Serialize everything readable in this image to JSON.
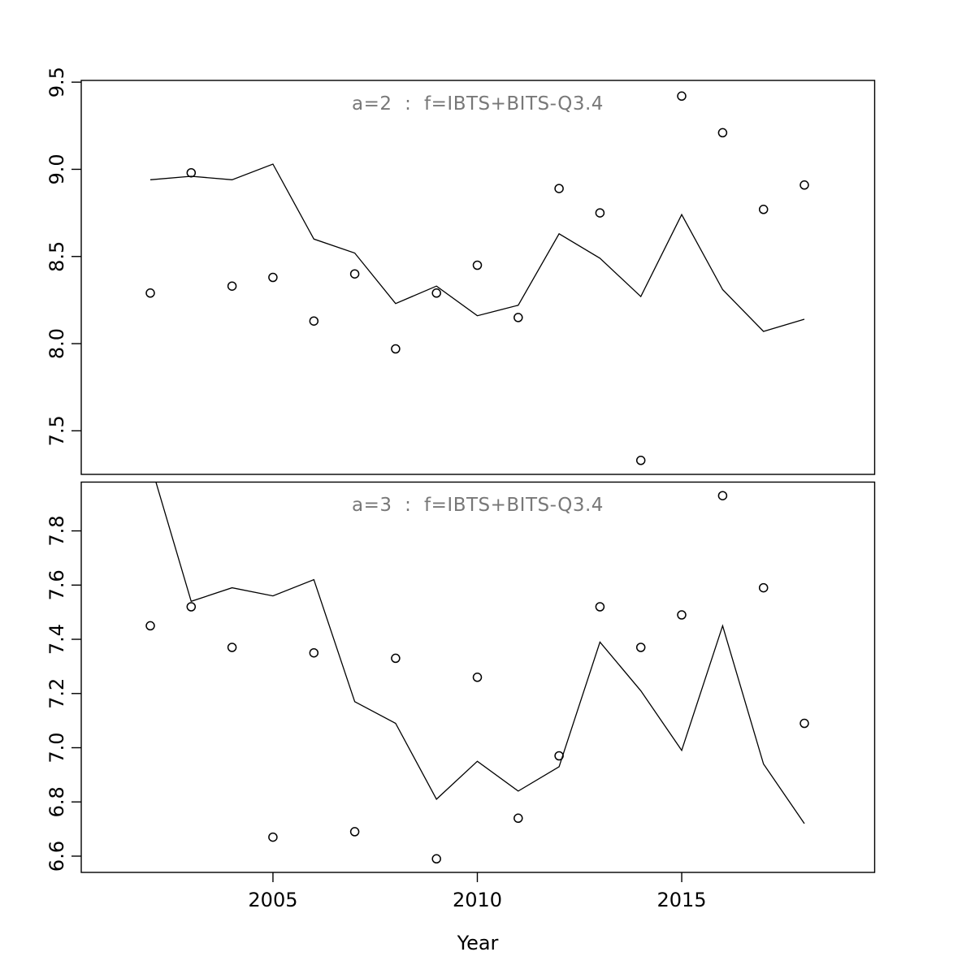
{
  "figure": {
    "xlabel": "Year",
    "x_tick_labels": [
      "2005",
      "2010",
      "2015"
    ],
    "x_tick_years": [
      2005,
      2010,
      2015
    ],
    "background_color": "#ffffff",
    "axis_color": "#000000",
    "title_color": "#787878",
    "line_color": "#000000",
    "point_color": "#000000",
    "panel_layout": "2 rows x 1 column, shared x axis"
  },
  "chart_data": [
    {
      "type": "scatter",
      "title": "a=2  :  f=IBTS+BITS-Q3.4",
      "xlabel": "Year",
      "ylabel": "",
      "grid": false,
      "legend": null,
      "x": [
        2002,
        2003,
        2004,
        2005,
        2006,
        2007,
        2008,
        2009,
        2010,
        2011,
        2012,
        2013,
        2014,
        2015,
        2016,
        2017,
        2018
      ],
      "series": [
        {
          "name": "observed-index",
          "style": "open-circles",
          "values": [
            8.29,
            8.98,
            8.33,
            8.38,
            8.13,
            8.4,
            7.97,
            8.29,
            8.45,
            8.15,
            8.89,
            8.75,
            7.33,
            9.42,
            9.21,
            8.77,
            8.91
          ]
        },
        {
          "name": "fitted-line",
          "style": "solid-line",
          "values": [
            8.94,
            8.96,
            8.94,
            9.03,
            8.6,
            8.52,
            8.23,
            8.33,
            8.16,
            8.22,
            8.63,
            8.49,
            8.27,
            8.74,
            8.31,
            8.07,
            8.14
          ]
        }
      ],
      "xlim": [
        2000.31,
        2019.72
      ],
      "ylim": [
        7.25,
        9.51
      ],
      "y_ticks": [
        7.5,
        8.0,
        8.5,
        9.0,
        9.5
      ],
      "y_tick_labels": [
        "7.5",
        "8.0",
        "8.5",
        "9.0",
        "9.5"
      ]
    },
    {
      "type": "scatter",
      "title": "a=3  :  f=IBTS+BITS-Q3.4",
      "xlabel": "Year",
      "ylabel": "",
      "grid": false,
      "legend": null,
      "x": [
        2002,
        2003,
        2004,
        2005,
        2006,
        2007,
        2008,
        2009,
        2010,
        2011,
        2012,
        2013,
        2014,
        2015,
        2016,
        2017,
        2018
      ],
      "series": [
        {
          "name": "observed-index",
          "style": "open-circles",
          "values": [
            7.45,
            7.52,
            7.37,
            6.67,
            7.35,
            6.69,
            7.33,
            6.59,
            7.26,
            6.74,
            6.97,
            7.52,
            7.37,
            7.49,
            7.93,
            7.59,
            7.09
          ]
        },
        {
          "name": "fitted-line",
          "style": "solid-line",
          "values": [
            8.05,
            7.54,
            7.59,
            7.56,
            7.62,
            7.17,
            7.09,
            6.81,
            6.95,
            6.84,
            6.93,
            7.39,
            7.21,
            6.99,
            7.45,
            6.94,
            6.72
          ]
        }
      ],
      "xlim": [
        2000.31,
        2019.72
      ],
      "ylim": [
        6.54,
        7.98
      ],
      "y_ticks": [
        6.6,
        6.8,
        7.0,
        7.2,
        7.4,
        7.6,
        7.8
      ],
      "y_tick_labels": [
        "6.6",
        "6.8",
        "7.0",
        "7.2",
        "7.4",
        "7.6",
        "7.8"
      ]
    }
  ]
}
